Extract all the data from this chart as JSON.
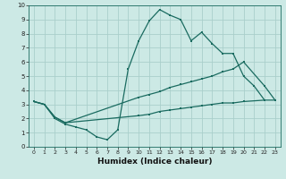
{
  "xlabel": "Humidex (Indice chaleur)",
  "xlim": [
    -0.5,
    23.5
  ],
  "ylim": [
    0,
    10
  ],
  "xticks": [
    0,
    1,
    2,
    3,
    4,
    5,
    6,
    7,
    8,
    9,
    10,
    11,
    12,
    13,
    14,
    15,
    16,
    17,
    18,
    19,
    20,
    21,
    22,
    23
  ],
  "yticks": [
    0,
    1,
    2,
    3,
    4,
    5,
    6,
    7,
    8,
    9,
    10
  ],
  "background_color": "#cce9e5",
  "grid_color": "#aacfcb",
  "line_color": "#1a6b60",
  "line1_x": [
    0,
    1,
    2,
    3,
    4,
    5,
    6,
    7,
    8,
    9,
    10,
    11,
    12,
    13,
    14,
    15,
    16,
    17,
    18,
    19,
    20,
    21,
    22
  ],
  "line1_y": [
    3.2,
    3.0,
    2.0,
    1.6,
    1.4,
    1.2,
    0.7,
    0.5,
    1.2,
    5.5,
    7.5,
    8.9,
    9.7,
    9.3,
    9.0,
    7.5,
    8.1,
    7.3,
    6.6,
    6.6,
    5.0,
    4.3,
    3.3
  ],
  "line2_x": [
    0,
    1,
    2,
    3,
    10,
    11,
    12,
    13,
    14,
    15,
    16,
    17,
    18,
    19,
    20,
    22,
    23
  ],
  "line2_y": [
    3.2,
    3.0,
    2.1,
    1.7,
    3.5,
    3.7,
    3.9,
    4.2,
    4.4,
    4.6,
    4.8,
    5.0,
    5.3,
    5.5,
    6.0,
    4.3,
    3.3
  ],
  "line3_x": [
    0,
    1,
    2,
    3,
    10,
    11,
    12,
    13,
    14,
    15,
    16,
    17,
    18,
    19,
    20,
    22,
    23
  ],
  "line3_y": [
    3.2,
    3.0,
    2.1,
    1.7,
    2.2,
    2.3,
    2.5,
    2.6,
    2.7,
    2.8,
    2.9,
    3.0,
    3.1,
    3.1,
    3.2,
    3.3,
    3.3
  ]
}
